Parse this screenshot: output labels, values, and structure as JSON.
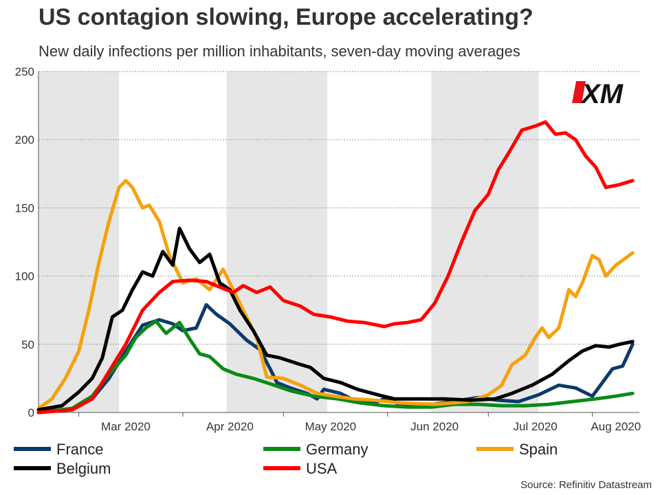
{
  "title": "US contagion slowing, Europe accelerating?",
  "subtitle": "New daily infections per million inhabitants, seven-day moving averages",
  "source": "Source: Refinitiv Datastream",
  "logo": "XM",
  "chart_data": {
    "type": "line",
    "title": "US contagion slowing, Europe accelerating?",
    "ylim": [
      0,
      250
    ],
    "yticks": [
      0,
      50,
      100,
      150,
      200,
      250
    ],
    "xlim": [
      "2020-02-18",
      "2020-08-15"
    ],
    "xtick_labels": [
      {
        "label": "Mar 2020",
        "date": "2020-03-15"
      },
      {
        "label": "Apr 2020",
        "date": "2020-04-15"
      },
      {
        "label": "May 2020",
        "date": "2020-05-15"
      },
      {
        "label": "Jun 2020",
        "date": "2020-06-15"
      },
      {
        "label": "Jul 2020",
        "date": "2020-07-15"
      },
      {
        "label": "Aug 2020",
        "date": "2020-08-08"
      }
    ],
    "month_boundaries": [
      "2020-03-01",
      "2020-04-01",
      "2020-05-01",
      "2020-06-01",
      "2020-07-01",
      "2020-08-01"
    ],
    "shaded_bands": [
      [
        "2020-02-18",
        "2020-03-13"
      ],
      [
        "2020-04-14",
        "2020-05-14"
      ],
      [
        "2020-06-14",
        "2020-07-16"
      ]
    ],
    "grid": true,
    "legend_position": "bottom",
    "series": [
      {
        "name": "France",
        "color": "#0b3a6b",
        "points": [
          [
            "2020-02-18",
            0
          ],
          [
            "2020-02-28",
            2
          ],
          [
            "2020-03-05",
            10
          ],
          [
            "2020-03-10",
            25
          ],
          [
            "2020-03-15",
            45
          ],
          [
            "2020-03-20",
            64
          ],
          [
            "2020-03-25",
            68
          ],
          [
            "2020-03-29",
            65
          ],
          [
            "2020-04-01",
            60
          ],
          [
            "2020-04-05",
            62
          ],
          [
            "2020-04-08",
            79
          ],
          [
            "2020-04-11",
            72
          ],
          [
            "2020-04-15",
            65
          ],
          [
            "2020-04-20",
            53
          ],
          [
            "2020-04-24",
            46
          ],
          [
            "2020-04-27",
            32
          ],
          [
            "2020-04-29",
            22
          ],
          [
            "2020-05-03",
            18
          ],
          [
            "2020-05-08",
            14
          ],
          [
            "2020-05-11",
            10
          ],
          [
            "2020-05-13",
            17
          ],
          [
            "2020-05-18",
            14
          ],
          [
            "2020-05-22",
            9
          ],
          [
            "2020-05-28",
            7
          ],
          [
            "2020-05-31",
            10
          ],
          [
            "2020-06-05",
            6
          ],
          [
            "2020-06-12",
            5
          ],
          [
            "2020-06-20",
            8
          ],
          [
            "2020-06-28",
            11
          ],
          [
            "2020-07-04",
            9
          ],
          [
            "2020-07-10",
            8
          ],
          [
            "2020-07-16",
            13
          ],
          [
            "2020-07-22",
            20
          ],
          [
            "2020-07-27",
            18
          ],
          [
            "2020-08-01",
            12
          ],
          [
            "2020-08-04",
            22
          ],
          [
            "2020-08-07",
            32
          ],
          [
            "2020-08-10",
            34
          ],
          [
            "2020-08-13",
            50
          ]
        ]
      },
      {
        "name": "Germany",
        "color": "#0a8a17",
        "points": [
          [
            "2020-02-18",
            0
          ],
          [
            "2020-02-28",
            3
          ],
          [
            "2020-03-05",
            12
          ],
          [
            "2020-03-10",
            28
          ],
          [
            "2020-03-15",
            42
          ],
          [
            "2020-03-18",
            55
          ],
          [
            "2020-03-21",
            62
          ],
          [
            "2020-03-24",
            67
          ],
          [
            "2020-03-27",
            58
          ],
          [
            "2020-03-31",
            66
          ],
          [
            "2020-04-03",
            54
          ],
          [
            "2020-04-06",
            43
          ],
          [
            "2020-04-09",
            41
          ],
          [
            "2020-04-13",
            32
          ],
          [
            "2020-04-17",
            28
          ],
          [
            "2020-04-22",
            25
          ],
          [
            "2020-04-27",
            21
          ],
          [
            "2020-05-03",
            16
          ],
          [
            "2020-05-10",
            12
          ],
          [
            "2020-05-17",
            10
          ],
          [
            "2020-05-24",
            7
          ],
          [
            "2020-05-31",
            5
          ],
          [
            "2020-06-07",
            4
          ],
          [
            "2020-06-14",
            4
          ],
          [
            "2020-06-21",
            6
          ],
          [
            "2020-06-28",
            6
          ],
          [
            "2020-07-05",
            5
          ],
          [
            "2020-07-12",
            5
          ],
          [
            "2020-07-19",
            6
          ],
          [
            "2020-07-26",
            8
          ],
          [
            "2020-08-02",
            10
          ],
          [
            "2020-08-08",
            12
          ],
          [
            "2020-08-13",
            14
          ]
        ]
      },
      {
        "name": "Spain",
        "color": "#f5a10f",
        "points": [
          [
            "2020-02-18",
            3
          ],
          [
            "2020-02-22",
            10
          ],
          [
            "2020-02-26",
            25
          ],
          [
            "2020-03-01",
            45
          ],
          [
            "2020-03-04",
            75
          ],
          [
            "2020-03-07",
            110
          ],
          [
            "2020-03-10",
            140
          ],
          [
            "2020-03-13",
            165
          ],
          [
            "2020-03-15",
            170
          ],
          [
            "2020-03-17",
            165
          ],
          [
            "2020-03-20",
            150
          ],
          [
            "2020-03-22",
            152
          ],
          [
            "2020-03-25",
            140
          ],
          [
            "2020-03-28",
            115
          ],
          [
            "2020-04-01",
            95
          ],
          [
            "2020-04-05",
            98
          ],
          [
            "2020-04-09",
            90
          ],
          [
            "2020-04-13",
            105
          ],
          [
            "2020-04-16",
            90
          ],
          [
            "2020-04-19",
            75
          ],
          [
            "2020-04-23",
            55
          ],
          [
            "2020-04-26",
            26
          ],
          [
            "2020-05-01",
            25
          ],
          [
            "2020-05-06",
            20
          ],
          [
            "2020-05-11",
            14
          ],
          [
            "2020-05-16",
            12
          ],
          [
            "2020-05-22",
            10
          ],
          [
            "2020-05-28",
            9
          ],
          [
            "2020-06-05",
            7
          ],
          [
            "2020-06-15",
            6
          ],
          [
            "2020-06-25",
            8
          ],
          [
            "2020-07-01",
            13
          ],
          [
            "2020-07-05",
            20
          ],
          [
            "2020-07-08",
            35
          ],
          [
            "2020-07-12",
            42
          ],
          [
            "2020-07-15",
            55
          ],
          [
            "2020-07-17",
            62
          ],
          [
            "2020-07-19",
            55
          ],
          [
            "2020-07-22",
            62
          ],
          [
            "2020-07-25",
            90
          ],
          [
            "2020-07-27",
            85
          ],
          [
            "2020-07-29",
            95
          ],
          [
            "2020-08-01",
            115
          ],
          [
            "2020-08-03",
            112
          ],
          [
            "2020-08-05",
            100
          ],
          [
            "2020-08-08",
            108
          ],
          [
            "2020-08-13",
            117
          ]
        ]
      },
      {
        "name": "Belgium",
        "color": "#000000",
        "points": [
          [
            "2020-02-18",
            2
          ],
          [
            "2020-02-25",
            5
          ],
          [
            "2020-03-01",
            15
          ],
          [
            "2020-03-05",
            25
          ],
          [
            "2020-03-08",
            40
          ],
          [
            "2020-03-11",
            70
          ],
          [
            "2020-03-14",
            75
          ],
          [
            "2020-03-17",
            90
          ],
          [
            "2020-03-20",
            103
          ],
          [
            "2020-03-23",
            100
          ],
          [
            "2020-03-26",
            118
          ],
          [
            "2020-03-29",
            108
          ],
          [
            "2020-03-31",
            135
          ],
          [
            "2020-04-03",
            120
          ],
          [
            "2020-04-06",
            110
          ],
          [
            "2020-04-09",
            116
          ],
          [
            "2020-04-12",
            95
          ],
          [
            "2020-04-15",
            90
          ],
          [
            "2020-04-18",
            75
          ],
          [
            "2020-04-22",
            60
          ],
          [
            "2020-04-26",
            42
          ],
          [
            "2020-04-30",
            40
          ],
          [
            "2020-05-05",
            36
          ],
          [
            "2020-05-09",
            33
          ],
          [
            "2020-05-13",
            25
          ],
          [
            "2020-05-18",
            22
          ],
          [
            "2020-05-23",
            17
          ],
          [
            "2020-05-29",
            13
          ],
          [
            "2020-06-03",
            10
          ],
          [
            "2020-06-10",
            10
          ],
          [
            "2020-06-18",
            10
          ],
          [
            "2020-06-26",
            9
          ],
          [
            "2020-07-03",
            10
          ],
          [
            "2020-07-08",
            14
          ],
          [
            "2020-07-14",
            20
          ],
          [
            "2020-07-20",
            28
          ],
          [
            "2020-07-25",
            38
          ],
          [
            "2020-07-29",
            45
          ],
          [
            "2020-08-02",
            49
          ],
          [
            "2020-08-06",
            48
          ],
          [
            "2020-08-09",
            50
          ],
          [
            "2020-08-13",
            52
          ]
        ]
      },
      {
        "name": "USA",
        "color": "#ff0000",
        "points": [
          [
            "2020-02-18",
            0
          ],
          [
            "2020-02-28",
            2
          ],
          [
            "2020-03-05",
            10
          ],
          [
            "2020-03-10",
            30
          ],
          [
            "2020-03-15",
            50
          ],
          [
            "2020-03-20",
            75
          ],
          [
            "2020-03-25",
            88
          ],
          [
            "2020-03-29",
            96
          ],
          [
            "2020-04-03",
            97
          ],
          [
            "2020-04-08",
            96
          ],
          [
            "2020-04-12",
            92
          ],
          [
            "2020-04-16",
            88
          ],
          [
            "2020-04-19",
            93
          ],
          [
            "2020-04-23",
            88
          ],
          [
            "2020-04-27",
            92
          ],
          [
            "2020-05-01",
            82
          ],
          [
            "2020-05-06",
            78
          ],
          [
            "2020-05-10",
            72
          ],
          [
            "2020-05-15",
            70
          ],
          [
            "2020-05-20",
            67
          ],
          [
            "2020-05-25",
            66
          ],
          [
            "2020-05-31",
            63
          ],
          [
            "2020-06-03",
            65
          ],
          [
            "2020-06-07",
            66
          ],
          [
            "2020-06-11",
            68
          ],
          [
            "2020-06-15",
            80
          ],
          [
            "2020-06-19",
            100
          ],
          [
            "2020-06-23",
            125
          ],
          [
            "2020-06-27",
            148
          ],
          [
            "2020-07-01",
            160
          ],
          [
            "2020-07-04",
            178
          ],
          [
            "2020-07-07",
            190
          ],
          [
            "2020-07-11",
            207
          ],
          [
            "2020-07-15",
            210
          ],
          [
            "2020-07-18",
            213
          ],
          [
            "2020-07-21",
            204
          ],
          [
            "2020-07-24",
            205
          ],
          [
            "2020-07-27",
            200
          ],
          [
            "2020-07-30",
            188
          ],
          [
            "2020-08-02",
            180
          ],
          [
            "2020-08-05",
            165
          ],
          [
            "2020-08-09",
            167
          ],
          [
            "2020-08-13",
            170
          ]
        ]
      }
    ]
  }
}
